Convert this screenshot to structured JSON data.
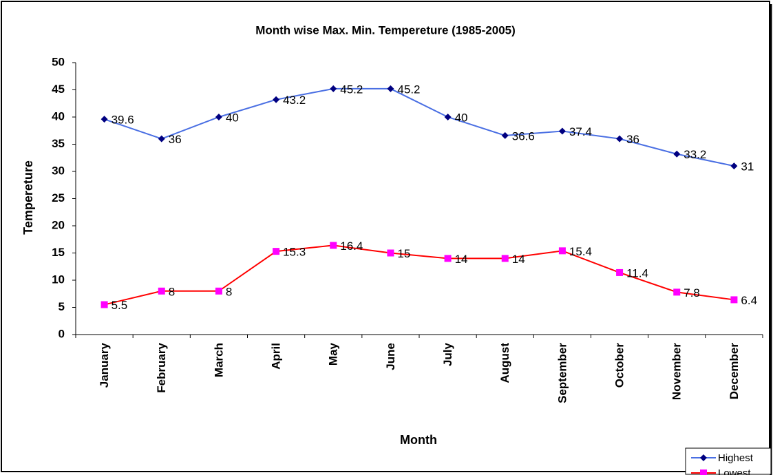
{
  "chart_data": {
    "type": "line",
    "title": "Month wise Max. Min. Tempereture (1985-2005)",
    "x_label": "Month",
    "y_label": "Tempereture",
    "categories": [
      "January",
      "February",
      "March",
      "April",
      "May",
      "June",
      "July",
      "August",
      "September",
      "October",
      "November",
      "December"
    ],
    "series": [
      {
        "name": "Highest",
        "color": "#4a6fe3",
        "marker_color": "#000080",
        "marker": "diamond",
        "values": [
          39.6,
          36,
          40,
          43.2,
          45.2,
          45.2,
          40,
          36.6,
          37.4,
          36,
          33.2,
          31
        ]
      },
      {
        "name": "Lowest",
        "color": "#ff0000",
        "marker_color": "#ff00ff",
        "marker": "square",
        "values": [
          5.5,
          8,
          8,
          15.3,
          16.4,
          15,
          14,
          14,
          15.4,
          11.4,
          7.8,
          6.4
        ]
      }
    ],
    "ylim": [
      0,
      50
    ],
    "yticks": [
      0,
      5,
      10,
      15,
      20,
      25,
      30,
      35,
      40,
      45,
      50
    ],
    "grid": false,
    "legend": "bottom-right"
  }
}
